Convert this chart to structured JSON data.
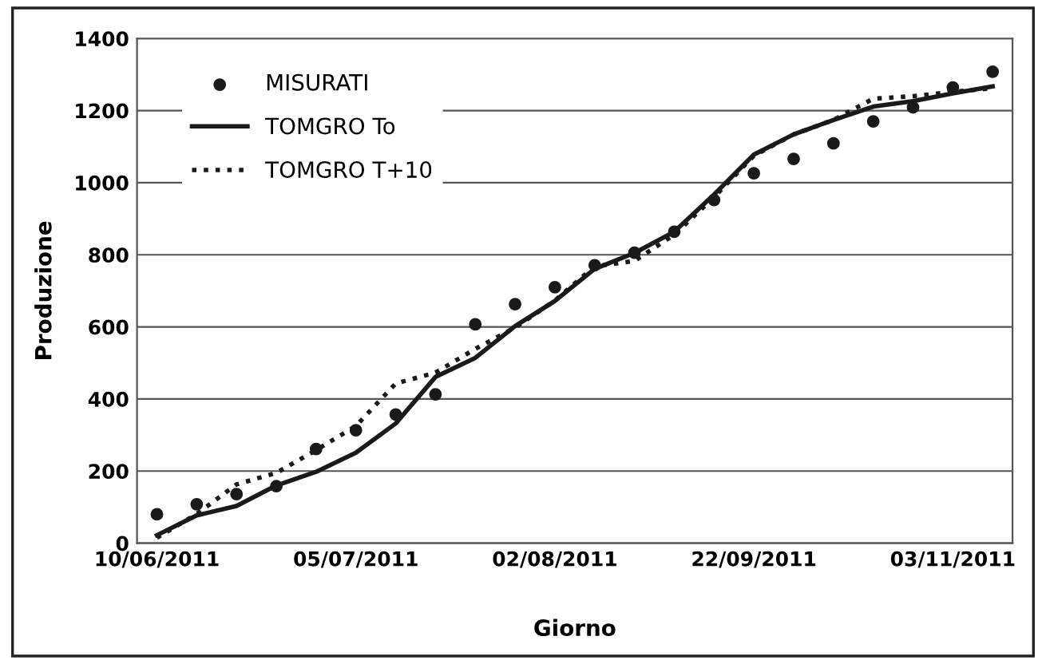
{
  "chart_data": {
    "type": "line",
    "xlabel": "Giorno",
    "ylabel": "Produzione",
    "categories": [
      "10/06/2011",
      null,
      null,
      null,
      null,
      "05/07/2011",
      null,
      null,
      null,
      null,
      "02/08/2011",
      null,
      null,
      null,
      null,
      "22/09/2011",
      null,
      null,
      null,
      null,
      "03/11/2011",
      null
    ],
    "series": [
      {
        "name": "MISURATI",
        "type": "scatter",
        "marker": "circle",
        "color": "#1a1a1a",
        "values": [
          80,
          108,
          136,
          158,
          261,
          313,
          357,
          413,
          607,
          663,
          710,
          771,
          806,
          864,
          952,
          1026,
          1066,
          1109,
          1170,
          1209,
          1264,
          1308
        ]
      },
      {
        "name": "TOMGRO To",
        "line_style": "solid",
        "color": "#1a1a1a",
        "values": [
          22,
          77,
          103,
          160,
          198,
          251,
          332,
          461,
          514,
          602,
          672,
          761,
          805,
          864,
          967,
          1078,
          1134,
          1174,
          1211,
          1226,
          1248,
          1267
        ]
      },
      {
        "name": "TOMGRO T+10",
        "line_style": "dotted",
        "color": "#1a1a1a",
        "values": [
          15,
          81,
          163,
          195,
          258,
          325,
          443,
          473,
          539,
          598,
          673,
          768,
          783,
          856,
          960,
          1075,
          1134,
          1174,
          1233,
          1240,
          1252,
          1262
        ]
      }
    ],
    "ylim": [
      0,
      1400
    ],
    "yticks": [
      0,
      200,
      400,
      600,
      800,
      1000,
      1200,
      1400
    ],
    "grid": "y",
    "legend": "top left"
  }
}
